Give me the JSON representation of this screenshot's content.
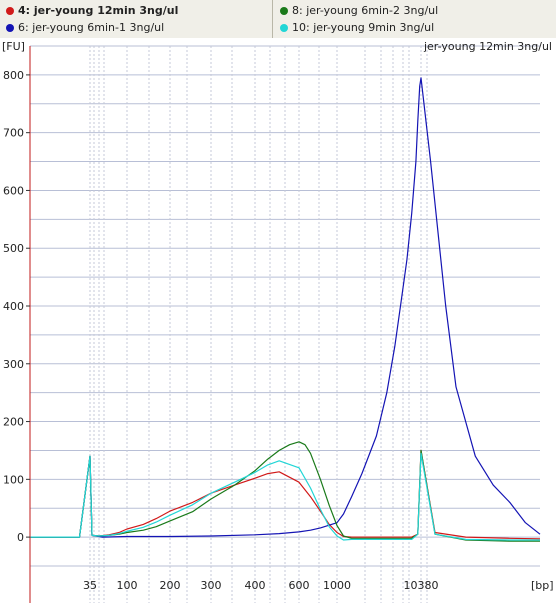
{
  "legend": [
    {
      "label": "4: jer-young 12min 3ng/ul",
      "color": "#d11a1a",
      "bold": true
    },
    {
      "label": "6: jer-young 6min-1 3ng/ul",
      "color": "#1414b4",
      "bold": false
    },
    {
      "label": "8: jer-young 6min-2 3ng/ul",
      "color": "#1a7a1a",
      "bold": false
    },
    {
      "label": "10: jer-young 9min 3ng/ul",
      "color": "#22d6d6",
      "bold": false
    }
  ],
  "chart_data": {
    "type": "line",
    "title": "jer-young 12min 3ng/ul",
    "ylabel": "[FU]",
    "xlabel": "[bp]",
    "ylim": [
      -50,
      850
    ],
    "yticks": [
      0,
      100,
      200,
      300,
      400,
      500,
      600,
      700,
      800
    ],
    "xticks": [
      "35",
      "100",
      "200",
      "300",
      "400",
      "600",
      "1000",
      "10380"
    ],
    "grid": true,
    "series": [
      {
        "name": "4: jer-young 12min 3ng/ul",
        "color": "#d11a1a",
        "x": [
          25,
          33,
          35,
          37,
          45,
          60,
          80,
          100,
          130,
          160,
          200,
          250,
          300,
          350,
          400,
          450,
          500,
          600,
          700,
          800,
          900,
          1000,
          1200,
          1500,
          2500,
          5000,
          8000,
          9500,
          10380,
          11000,
          12500,
          15000,
          17000
        ],
        "values": [
          0,
          0,
          140,
          3,
          2,
          4,
          8,
          14,
          22,
          32,
          45,
          60,
          76,
          90,
          102,
          110,
          113,
          95,
          70,
          45,
          22,
          8,
          1,
          0,
          0,
          0,
          0,
          5,
          150,
          8,
          0,
          -2,
          -3
        ]
      },
      {
        "name": "6: jer-young 6min-1 3ng/ul",
        "color": "#1414b4",
        "x": [
          25,
          33,
          35,
          37,
          50,
          100,
          200,
          300,
          400,
          500,
          600,
          700,
          800,
          1000,
          1200,
          1500,
          2000,
          3000,
          4000,
          5000,
          6000,
          7000,
          8000,
          9000,
          9500,
          10000,
          10380,
          10800,
          11500,
          12000,
          13000,
          14000,
          15000,
          16000,
          17000
        ],
        "values": [
          0,
          0,
          140,
          3,
          0,
          1,
          1,
          2,
          4,
          6,
          9,
          12,
          16,
          25,
          40,
          70,
          110,
          175,
          250,
          330,
          410,
          480,
          560,
          650,
          720,
          780,
          795,
          650,
          400,
          260,
          140,
          90,
          60,
          25,
          5
        ]
      },
      {
        "name": "8: jer-young 6min-2 3ng/ul",
        "color": "#1a7a1a",
        "x": [
          25,
          33,
          35,
          37,
          45,
          60,
          80,
          100,
          130,
          160,
          200,
          250,
          300,
          350,
          400,
          450,
          500,
          550,
          600,
          650,
          700,
          800,
          900,
          1000,
          1200,
          1500,
          2500,
          5000,
          8000,
          9500,
          10380,
          11000,
          12500,
          15000,
          17000
        ],
        "values": [
          0,
          0,
          140,
          3,
          2,
          3,
          5,
          8,
          12,
          18,
          28,
          44,
          66,
          90,
          115,
          135,
          150,
          160,
          165,
          160,
          145,
          100,
          55,
          20,
          2,
          -2,
          -2,
          -2,
          -2,
          5,
          150,
          5,
          -5,
          -7,
          -7
        ]
      },
      {
        "name": "10: jer-young 9min 3ng/ul",
        "color": "#22d6d6",
        "x": [
          25,
          33,
          35,
          37,
          45,
          60,
          80,
          100,
          130,
          160,
          200,
          250,
          300,
          350,
          400,
          450,
          500,
          600,
          700,
          800,
          900,
          1000,
          1200,
          1500,
          2500,
          5000,
          8000,
          9500,
          10380,
          11000,
          12500,
          15000,
          17000
        ],
        "values": [
          0,
          0,
          140,
          3,
          2,
          3,
          6,
          10,
          17,
          26,
          38,
          56,
          76,
          95,
          112,
          125,
          132,
          120,
          85,
          48,
          18,
          2,
          -5,
          -4,
          -4,
          -4,
          -4,
          5,
          145,
          5,
          -4,
          -5,
          -5
        ]
      }
    ]
  }
}
